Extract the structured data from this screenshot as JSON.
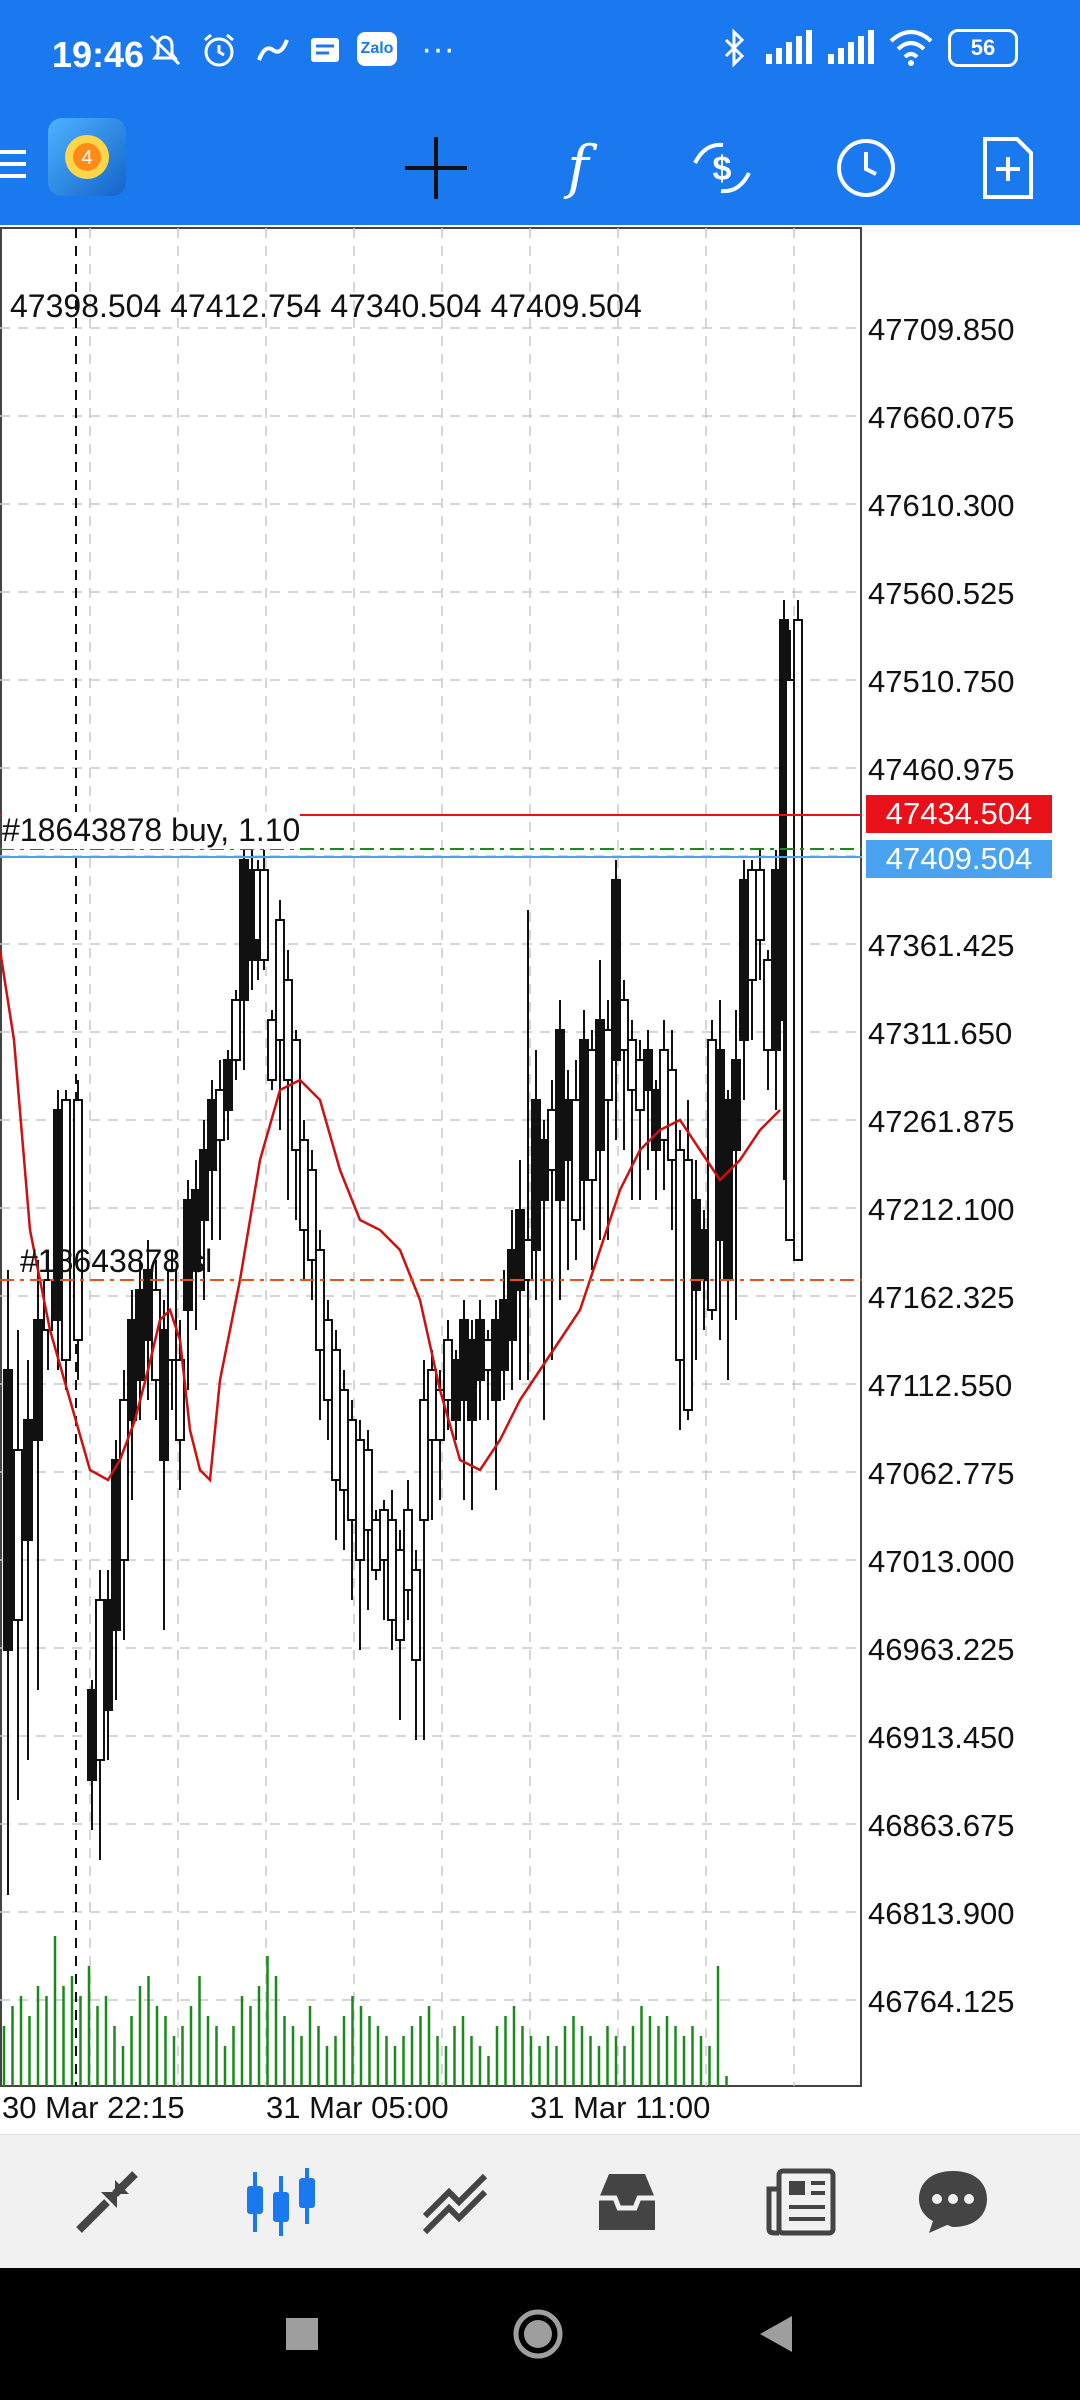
{
  "status_bar": {
    "time": "19:46",
    "battery": "56",
    "left_icons": [
      "mute-icon",
      "alarm-icon",
      "vpn-icon",
      "notification-icon",
      "zalo-icon",
      "more-dots-icon"
    ],
    "right_icons": [
      "bluetooth-icon",
      "signal-icon",
      "signal-icon",
      "wifi-icon"
    ],
    "zalo_label": "Zalo",
    "more_label": "···"
  },
  "toolbar": {
    "icons": [
      "menu-icon",
      "app-logo",
      "crosshair-icon",
      "indicators-icon",
      "trade-icon",
      "timeframe-icon",
      "new-order-icon"
    ]
  },
  "chart": {
    "ohlc": "47398.504 47412.754 47340.504 47409.504",
    "order_buy_label": "#18643878 buy, 1.10",
    "order_sl_label": "#18643878 sl",
    "price_ticks": [
      "47709.850",
      "47660.075",
      "47610.300",
      "47560.525",
      "47510.750",
      "47460.975",
      "47361.425",
      "47311.650",
      "47261.875",
      "47212.100",
      "47162.325",
      "47112.550",
      "47062.775",
      "47013.000",
      "46963.225",
      "46913.450",
      "46863.675",
      "46813.900",
      "46764.125"
    ],
    "current_ask": "47434.504",
    "current_bid": "47409.504",
    "time_labels": [
      "30 Mar 22:15",
      "31 Mar 05:00",
      "31 Mar 11:00"
    ],
    "colors": {
      "ask": "#e8111a",
      "bid": "#4aa3f0",
      "ma": "#cc1111",
      "volume": "#1a8a1a",
      "grid": "#c8c8c8"
    }
  },
  "bottom_nav": {
    "items": [
      "quotes-icon",
      "chart-icon",
      "trade-icon",
      "history-icon",
      "news-icon",
      "messages-icon"
    ],
    "active": "chart-icon"
  },
  "system_nav": {
    "items": [
      "recents-button",
      "home-button",
      "back-button"
    ]
  }
}
